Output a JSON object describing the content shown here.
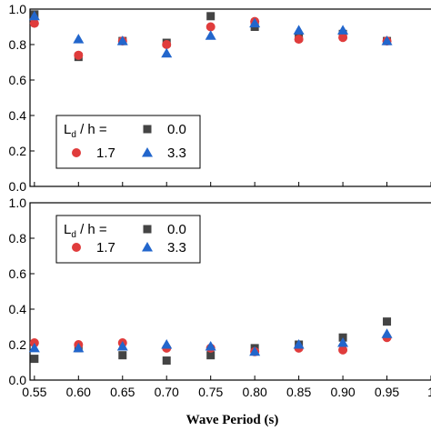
{
  "colors": {
    "series_0.0": "#444444",
    "series_1.7": "#e03c3c",
    "series_3.3": "#2266cc"
  },
  "chart_data": [
    {
      "type": "scatter",
      "panel": "top",
      "xlabel": "",
      "ylabel": "",
      "xlim": [
        0.545,
        1.0
      ],
      "ylim": [
        0.0,
        1.0
      ],
      "yticks": [
        "0.0",
        "0.2",
        "0.4",
        "0.6",
        "0.8",
        "1.0"
      ],
      "grid": false,
      "legend": {
        "placement": "bottom-left",
        "title_main": "L",
        "title_sub": "d",
        "title_rest": " / h =",
        "entries": [
          "0.0",
          "1.7",
          "3.3"
        ]
      },
      "x": [
        0.55,
        0.6,
        0.65,
        0.7,
        0.75,
        0.8,
        0.85,
        0.9,
        0.95
      ],
      "series": [
        {
          "name": "0.0",
          "marker": "square",
          "values": [
            0.97,
            0.73,
            0.82,
            0.81,
            0.96,
            0.9,
            0.84,
            0.86,
            0.82
          ]
        },
        {
          "name": "1.7",
          "marker": "circle",
          "values": [
            0.92,
            0.74,
            0.82,
            0.8,
            0.9,
            0.93,
            0.83,
            0.84,
            0.82
          ]
        },
        {
          "name": "3.3",
          "marker": "triangle",
          "values": [
            0.96,
            0.83,
            0.82,
            0.75,
            0.85,
            0.92,
            0.88,
            0.88,
            0.82
          ]
        }
      ]
    },
    {
      "type": "scatter",
      "panel": "bottom",
      "xlabel": "Wave Period (s)",
      "ylabel": "",
      "xlim": [
        0.545,
        1.0
      ],
      "ylim": [
        0.0,
        1.0
      ],
      "xticks": [
        "0.55",
        "0.60",
        "0.65",
        "0.70",
        "0.75",
        "0.80",
        "0.85",
        "0.90",
        "0.95",
        "1"
      ],
      "yticks": [
        "0.0",
        "0.2",
        "0.4",
        "0.6",
        "0.8",
        "1.0"
      ],
      "grid": false,
      "legend": {
        "placement": "top-left",
        "title_main": "L",
        "title_sub": "d",
        "title_rest": " / h =",
        "entries": [
          "0.0",
          "1.7",
          "3.3"
        ]
      },
      "x": [
        0.55,
        0.6,
        0.65,
        0.7,
        0.75,
        0.8,
        0.85,
        0.9,
        0.95
      ],
      "series": [
        {
          "name": "0.0",
          "marker": "square",
          "values": [
            0.12,
            0.18,
            0.14,
            0.11,
            0.14,
            0.18,
            0.2,
            0.24,
            0.33
          ]
        },
        {
          "name": "1.7",
          "marker": "circle",
          "values": [
            0.21,
            0.2,
            0.21,
            0.18,
            0.18,
            0.16,
            0.18,
            0.17,
            0.24
          ]
        },
        {
          "name": "3.3",
          "marker": "triangle",
          "values": [
            0.18,
            0.18,
            0.19,
            0.2,
            0.19,
            0.16,
            0.2,
            0.21,
            0.26
          ]
        }
      ]
    }
  ]
}
